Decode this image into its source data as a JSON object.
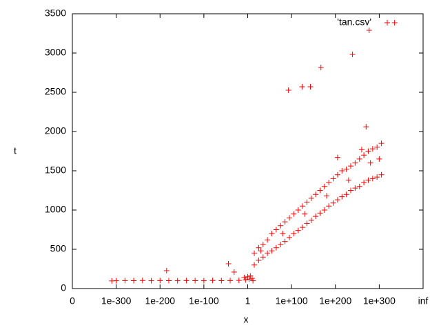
{
  "chart_data": {
    "type": "scatter",
    "xlabel": "x",
    "ylabel": "t",
    "xlim": [
      -400,
      400
    ],
    "xticks": [
      {
        "value": -400,
        "label": "0"
      },
      {
        "value": -300,
        "label": "1e-300"
      },
      {
        "value": -200,
        "label": "1e-200"
      },
      {
        "value": -100,
        "label": "1e-100"
      },
      {
        "value": 0,
        "label": "1"
      },
      {
        "value": 100,
        "label": "1e+100"
      },
      {
        "value": 200,
        "label": "1e+200"
      },
      {
        "value": 300,
        "label": "1e+300"
      },
      {
        "value": 400,
        "label": "inf"
      }
    ],
    "ylim": [
      0,
      3500
    ],
    "yticks": [
      0,
      500,
      1000,
      1500,
      2000,
      2500,
      3000,
      3500
    ],
    "grid": false,
    "legend": "top-right",
    "series": [
      {
        "name": "'tan.csv'",
        "color": "#ff0000",
        "x": [
          -310,
          -300,
          -280,
          -260,
          -240,
          -220,
          -200,
          -180,
          -160,
          -140,
          -120,
          -100,
          -80,
          -60,
          -40,
          -20,
          -185,
          -44,
          -31,
          -8,
          -5,
          0,
          3,
          6,
          10,
          12,
          15,
          15,
          25,
          25,
          35,
          35,
          45,
          45,
          55,
          55,
          65,
          65,
          75,
          75,
          85,
          85,
          95,
          95,
          105,
          105,
          115,
          115,
          125,
          125,
          135,
          135,
          145,
          145,
          155,
          155,
          165,
          165,
          175,
          175,
          185,
          185,
          195,
          195,
          205,
          205,
          215,
          215,
          225,
          225,
          235,
          235,
          245,
          245,
          255,
          255,
          265,
          265,
          275,
          275,
          285,
          285,
          295,
          295,
          305,
          305,
          30,
          80,
          130,
          180,
          230,
          280,
          300,
          205,
          260,
          270,
          93,
          124,
          143,
          167,
          239,
          277,
          335
        ],
        "values": [
          98,
          100,
          102,
          101,
          103,
          100,
          102,
          101,
          100,
          102,
          101,
          100,
          103,
          101,
          102,
          104,
          228,
          316,
          210,
          140,
          110,
          150,
          120,
          160,
          130,
          100,
          300,
          450,
          360,
          520,
          400,
          560,
          450,
          620,
          480,
          700,
          520,
          750,
          560,
          800,
          600,
          850,
          650,
          900,
          700,
          950,
          740,
          1000,
          780,
          1050,
          830,
          1100,
          870,
          1150,
          920,
          1200,
          960,
          1250,
          1000,
          1300,
          1050,
          1350,
          1090,
          1400,
          1130,
          1450,
          1170,
          1500,
          1200,
          1520,
          1250,
          1560,
          1280,
          1600,
          1300,
          1650,
          1350,
          1700,
          1380,
          1750,
          1400,
          1780,
          1420,
          1800,
          1450,
          1850,
          480,
          700,
          950,
          1180,
          1380,
          1600,
          1650,
          1670,
          1770,
          2060,
          2526,
          2570,
          2570,
          2816,
          2983,
          3290,
          3386
        ]
      }
    ]
  }
}
